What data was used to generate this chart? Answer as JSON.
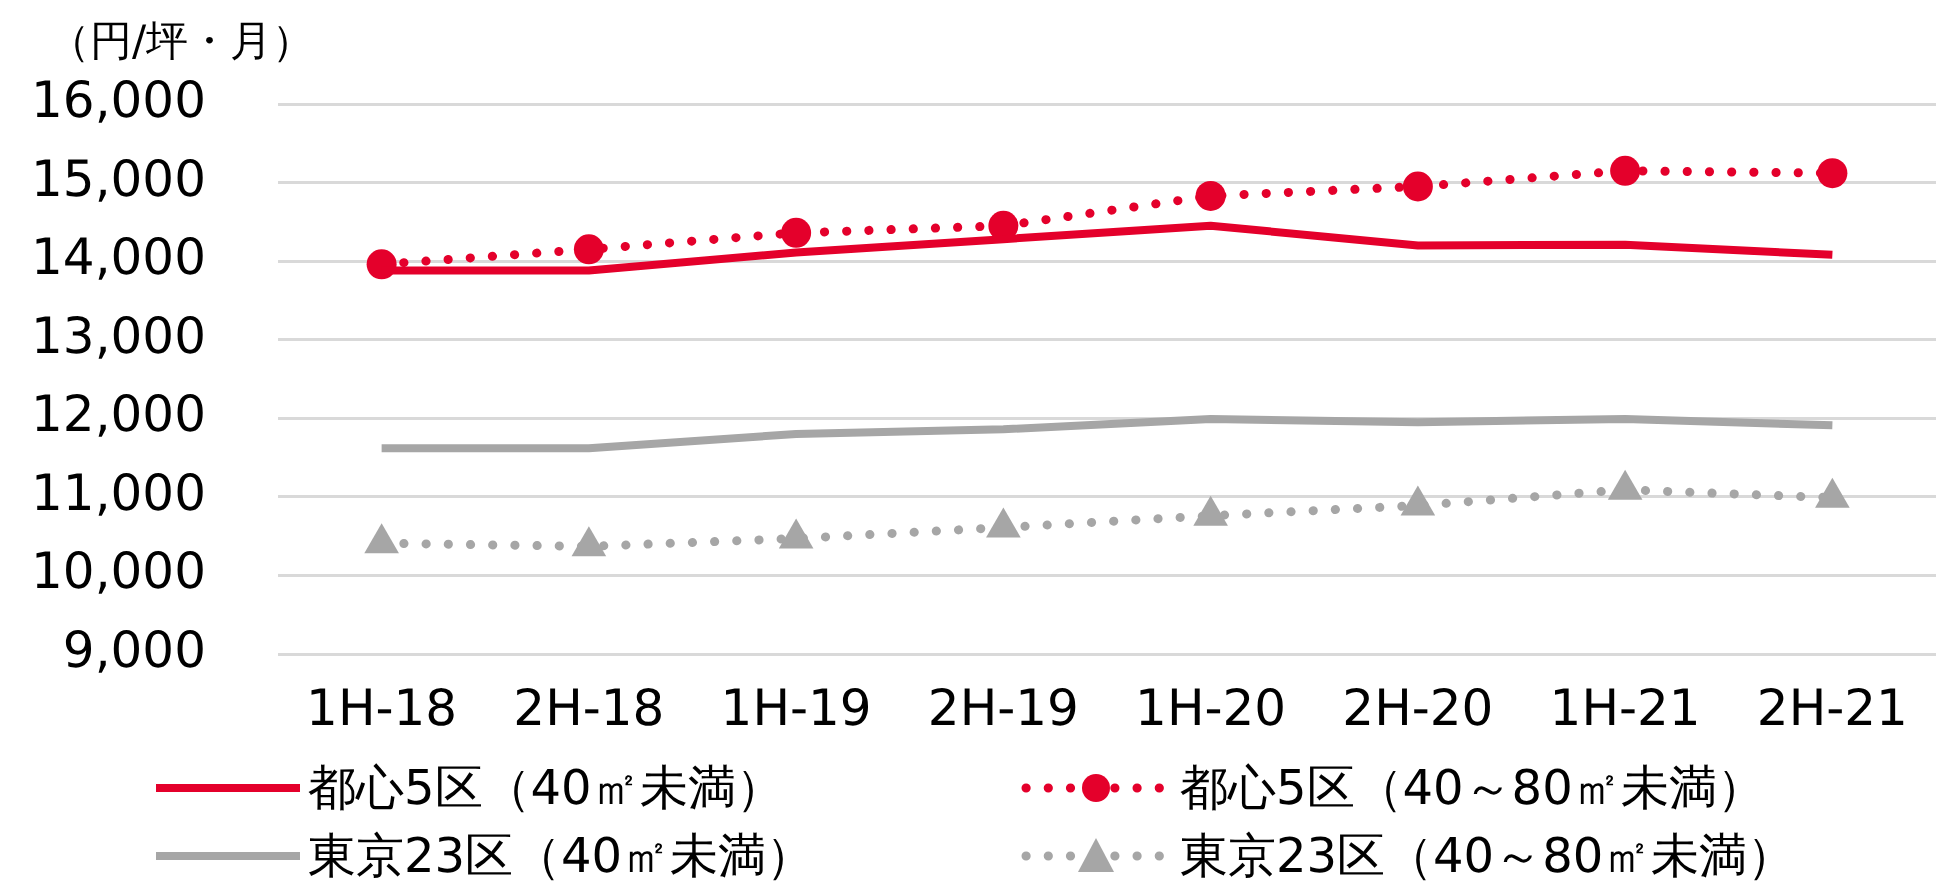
{
  "chart_data": {
    "type": "line",
    "ylabel": "（円/坪・月）",
    "categories": [
      "1H-18",
      "2H-18",
      "1H-19",
      "2H-19",
      "1H-20",
      "2H-20",
      "1H-21",
      "2H-21"
    ],
    "series": [
      {
        "name": "都心5区（40㎡未満）",
        "color": "#e4002b",
        "line_style": "solid",
        "marker": "none",
        "values": [
          13880,
          13880,
          14110,
          14280,
          14450,
          14200,
          14210,
          14080
        ]
      },
      {
        "name": "都心5区（40～80㎡未満）",
        "color": "#e4002b",
        "line_style": "dotted",
        "marker": "circle",
        "values": [
          13960,
          14150,
          14360,
          14450,
          14830,
          14950,
          15150,
          15120
        ]
      },
      {
        "name": "東京23区（40㎡未満）",
        "color": "#a6a6a6",
        "line_style": "solid",
        "marker": "none",
        "values": [
          11620,
          11620,
          11800,
          11860,
          11990,
          11950,
          11990,
          11910
        ]
      },
      {
        "name": "東京23区（40～80㎡未満）",
        "color": "#a6a6a6",
        "line_style": "dotted",
        "marker": "triangle",
        "values": [
          10410,
          10370,
          10470,
          10610,
          10760,
          10890,
          11090,
          10990
        ]
      }
    ],
    "ylim": [
      9000,
      16000
    ],
    "yticks": [
      {
        "value": 9000,
        "label": "9,000"
      },
      {
        "value": 10000,
        "label": "10,000"
      },
      {
        "value": 11000,
        "label": "11,000"
      },
      {
        "value": 12000,
        "label": "12,000"
      },
      {
        "value": 13000,
        "label": "13,000"
      },
      {
        "value": 14000,
        "label": "14,000"
      },
      {
        "value": 15000,
        "label": "15,000"
      },
      {
        "value": 16000,
        "label": "16,000"
      }
    ],
    "grid": "y",
    "legend": "bottom"
  }
}
